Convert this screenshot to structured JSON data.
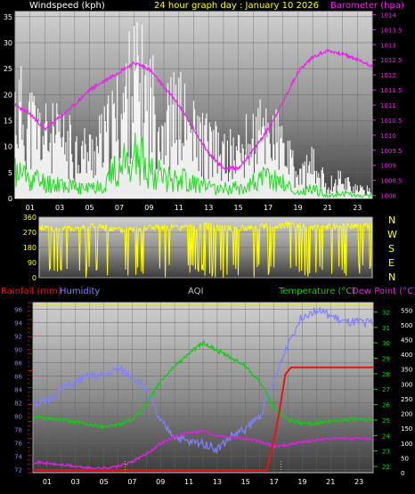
{
  "colors": {
    "wind": "#ffffff",
    "gust": "#ffffff",
    "wind_green": "#22dd22",
    "baro": "#ee22ee",
    "direction": "#ffff00",
    "rain": "#ee1111",
    "humidity": "#8080ff",
    "temperature": "#11cc11",
    "dewpoint": "#dd22dd",
    "aqi": "#bbbbbb",
    "title": "#ffff00",
    "axis": "#ffffff",
    "dir_letters": "#ffff00"
  },
  "chart_data": [
    {
      "id": "wind-baro",
      "type": "line",
      "title": "24 hour graph day : January 10 2026",
      "left_label": "Windspeed (kph)",
      "right_label": "Barometer (hpa)",
      "x_ticks": [
        "01",
        "03",
        "05",
        "07",
        "09",
        "11",
        "13",
        "15",
        "17",
        "19",
        "21",
        "23"
      ],
      "y_left_ticks": [
        0,
        5,
        10,
        15,
        20,
        25,
        30,
        35
      ],
      "y_left_range": [
        0,
        36
      ],
      "y_right_ticks": [
        1008,
        1008.5,
        1009,
        1009.5,
        1010,
        1010.5,
        1011,
        1011.5,
        1012,
        1012.5,
        1013,
        1013.5,
        1014
      ],
      "y_right_range": [
        1007.9,
        1014.1
      ],
      "grid": true,
      "series": [
        {
          "key": "baro",
          "x": [
            0,
            1,
            2,
            3,
            4,
            5,
            6,
            7,
            8,
            9,
            10,
            11,
            12,
            13,
            14,
            15,
            16,
            17,
            18,
            19,
            20,
            21,
            22,
            23,
            24
          ],
          "values": [
            1011.0,
            1010.7,
            1010.2,
            1010.6,
            1011.0,
            1011.5,
            1011.8,
            1012.1,
            1012.4,
            1012.2,
            1011.6,
            1011.0,
            1010.2,
            1009.4,
            1008.9,
            1008.9,
            1009.5,
            1010.2,
            1011.1,
            1012.1,
            1012.6,
            1012.8,
            1012.7,
            1012.5,
            1012.3
          ]
        },
        {
          "key": "wind_avg",
          "x": [
            0,
            1,
            2,
            3,
            4,
            5,
            6,
            7,
            8,
            9,
            10,
            11,
            12,
            13,
            14,
            15,
            16,
            17,
            18,
            19,
            20,
            21,
            22,
            23,
            24
          ],
          "values": [
            5,
            4,
            3,
            3,
            2,
            2,
            3,
            6,
            8,
            6,
            4,
            4,
            3,
            2,
            2,
            2,
            3,
            4,
            3,
            1,
            2,
            0.5,
            1,
            0.5,
            0.5
          ]
        },
        {
          "key": "wind_gust",
          "x": [
            0,
            1,
            2,
            3,
            4,
            5,
            6,
            7,
            8,
            9,
            10,
            11,
            12,
            13,
            14,
            15,
            16,
            17,
            18,
            19,
            20,
            21,
            22,
            23,
            24
          ],
          "values": [
            22,
            18,
            15,
            14,
            12,
            11,
            14,
            20,
            28,
            24,
            18,
            20,
            15,
            13,
            10,
            11,
            14,
            17,
            12,
            5,
            8,
            3,
            5,
            2,
            2
          ]
        }
      ]
    },
    {
      "id": "direction",
      "type": "line",
      "x_ticks": [],
      "y_left_ticks": [
        0,
        90,
        180,
        270,
        360
      ],
      "y_left_range": [
        0,
        360
      ],
      "right_labels": [
        "N",
        "W",
        "S",
        "E",
        "N"
      ],
      "grid": true,
      "series": [
        {
          "key": "direction",
          "x": [
            0,
            2,
            4,
            6,
            8,
            10,
            12,
            14,
            16,
            18,
            20,
            22,
            24
          ],
          "values": [
            300,
            290,
            305,
            280,
            300,
            295,
            310,
            290,
            300,
            315,
            300,
            305,
            310
          ]
        }
      ]
    },
    {
      "id": "temp-hum-rain",
      "type": "line",
      "left_label_1": "Rainfall (mm)",
      "left_label_2": "Humidity",
      "center_label": "AQI",
      "right_label_1": "Temperature (°C)",
      "right_label_2": "Dew Point (°C)",
      "x_ticks": [
        "01",
        "03",
        "05",
        "07",
        "09",
        "11",
        "13",
        "15",
        "17",
        "19",
        "21",
        "23"
      ],
      "hum_ticks": [
        72,
        74,
        76,
        78,
        80,
        82,
        84,
        86,
        88,
        90,
        92,
        94,
        96
      ],
      "hum_range": [
        71.5,
        97
      ],
      "temp_ticks": [
        22,
        23,
        24,
        25,
        26,
        27,
        28,
        29,
        30,
        31,
        32
      ],
      "temp_range": [
        21.6,
        32.6
      ],
      "aqi_ticks": [
        0,
        50,
        100,
        150,
        200,
        250,
        300,
        350,
        400,
        450,
        500,
        550
      ],
      "aqi_range": [
        0,
        575
      ],
      "grid": true,
      "series": [
        {
          "key": "humidity",
          "x": [
            0,
            1,
            2,
            3,
            4,
            5,
            6,
            7,
            8,
            9,
            10,
            11,
            12,
            13,
            14,
            15,
            16,
            17,
            18,
            19,
            20,
            21,
            22,
            23,
            24
          ],
          "values": [
            82,
            82,
            84,
            85,
            86,
            86,
            87,
            86,
            84,
            79,
            77,
            76,
            76,
            75,
            77,
            78,
            80,
            85,
            91,
            95,
            96,
            95,
            94,
            94,
            94
          ]
        },
        {
          "key": "temperature",
          "x": [
            0,
            1,
            2,
            3,
            4,
            5,
            6,
            7,
            8,
            9,
            10,
            11,
            12,
            13,
            14,
            15,
            16,
            17,
            18,
            19,
            20,
            21,
            22,
            23,
            24
          ],
          "values": [
            25.2,
            25.1,
            25.0,
            24.9,
            24.7,
            24.6,
            24.7,
            25.0,
            26.0,
            27.5,
            28.5,
            29.3,
            30.0,
            29.5,
            29.0,
            28.5,
            27.5,
            25.8,
            25.0,
            24.8,
            24.8,
            24.9,
            25.0,
            25.1,
            25.0
          ]
        },
        {
          "key": "dewpoint",
          "x": [
            0,
            1,
            2,
            3,
            4,
            5,
            6,
            7,
            8,
            9,
            10,
            11,
            12,
            13,
            14,
            15,
            16,
            17,
            18,
            19,
            20,
            21,
            22,
            23,
            24
          ],
          "values": [
            22.3,
            22.2,
            22.1,
            22.0,
            21.9,
            21.9,
            22.0,
            22.3,
            22.8,
            23.5,
            23.9,
            24.2,
            24.3,
            24.0,
            23.9,
            23.8,
            23.6,
            23.3,
            23.4,
            23.6,
            23.7,
            23.8,
            23.8,
            23.8,
            23.8
          ]
        },
        {
          "key": "rain",
          "x": [
            0,
            16.5,
            17.0,
            17.4,
            17.8,
            18.2,
            19,
            24
          ],
          "values": [
            0,
            0,
            2.5,
            5,
            8,
            8.6,
            8.6,
            8.6
          ]
        },
        {
          "key": "aqi",
          "x": [
            6.5,
            17.5
          ],
          "values": [
            20,
            20
          ]
        }
      ]
    }
  ]
}
